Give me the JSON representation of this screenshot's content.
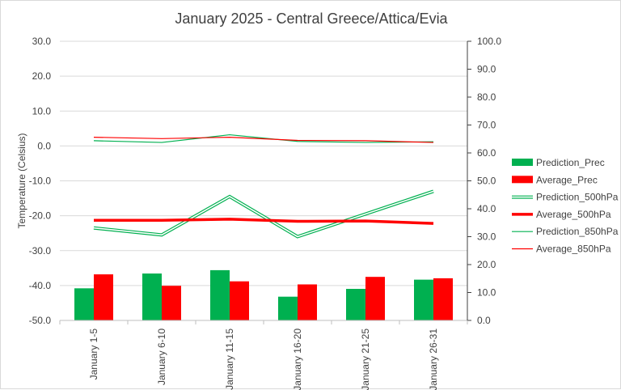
{
  "chart_data": {
    "type": "bar",
    "title": "January 2025 - Central Greece/Attica/Evia",
    "ylabel": "Temperature (Celsius)",
    "xlabel": "",
    "categories": [
      "January 1-5",
      "January 6-10",
      "January 11-15",
      "January 16-20",
      "January 21-25",
      "January 26-31"
    ],
    "y_left": {
      "min": -50,
      "max": 30,
      "step": 10,
      "tick_labels": [
        "-50.0",
        "-40.0",
        "-30.0",
        "-20.0",
        "-10.0",
        "0.0",
        "10.0",
        "20.0",
        "30.0"
      ]
    },
    "y_right": {
      "min": 0,
      "max": 100,
      "step": 10,
      "tick_labels": [
        "0.0",
        "10.0",
        "20.0",
        "30.0",
        "40.0",
        "50.0",
        "60.0",
        "70.0",
        "80.0",
        "90.0",
        "100.0"
      ]
    },
    "grid": true,
    "legend_position": "right",
    "series": [
      {
        "name": "Prediction_Prec",
        "kind": "bar",
        "axis": "right",
        "color": "#00b050",
        "values": [
          11.5,
          16.8,
          18.0,
          8.5,
          11.3,
          14.6
        ]
      },
      {
        "name": "Average_Prec",
        "kind": "bar",
        "axis": "right",
        "color": "#ff0000",
        "values": [
          16.5,
          12.4,
          14.0,
          12.9,
          15.6,
          15.1
        ]
      },
      {
        "name": "Prediction_500hPa",
        "kind": "line",
        "style": "double",
        "axis": "left",
        "color": "#00b050",
        "values": [
          -23.5,
          -25.5,
          -14.5,
          -26.0,
          -19.5,
          -13.0
        ]
      },
      {
        "name": "Average_500hPa",
        "kind": "line",
        "style": "thick",
        "axis": "left",
        "color": "#ff0000",
        "values": [
          -21.3,
          -21.3,
          -21.0,
          -21.6,
          -21.5,
          -22.2
        ]
      },
      {
        "name": "Prediction_850hPa",
        "kind": "line",
        "style": "thin",
        "axis": "left",
        "color": "#00b050",
        "values": [
          1.5,
          1.0,
          3.2,
          1.3,
          1.0,
          1.2
        ]
      },
      {
        "name": "Average_850hPa",
        "kind": "line",
        "style": "thin",
        "axis": "left",
        "color": "#ff0000",
        "values": [
          2.5,
          2.1,
          2.5,
          1.6,
          1.5,
          1.0
        ]
      }
    ]
  }
}
